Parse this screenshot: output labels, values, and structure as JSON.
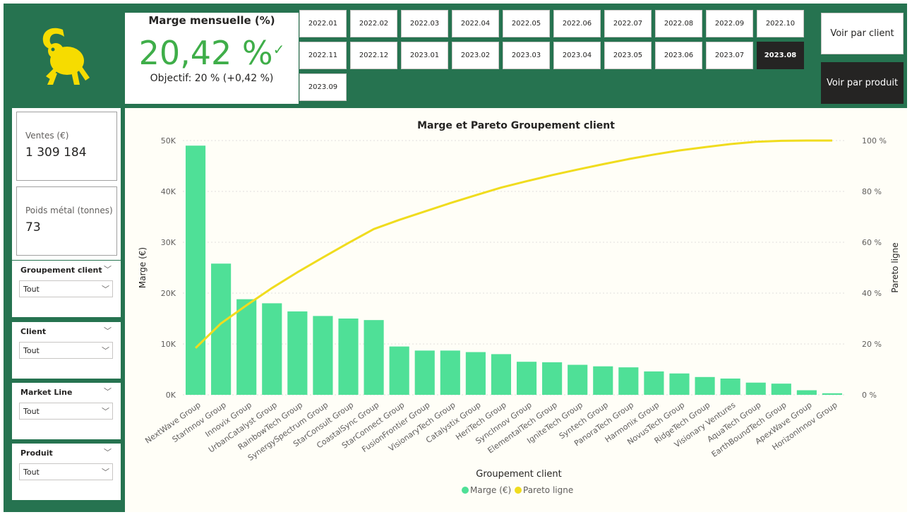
{
  "kpi": {
    "title": "Marge mensuelle (%)",
    "value": "20,42 %",
    "check": "✓",
    "goal": "Objectif: 20 % (+0,42 %)",
    "value_color": "#3fae49"
  },
  "periods": [
    "2022.01",
    "2022.02",
    "2022.03",
    "2022.04",
    "2022.05",
    "2022.06",
    "2022.07",
    "2022.08",
    "2022.09",
    "2022.10",
    "2022.11",
    "2022.12",
    "2023.01",
    "2023.02",
    "2023.03",
    "2023.04",
    "2023.05",
    "2023.06",
    "2023.07",
    "2023.08",
    "2023.09"
  ],
  "selected_period": "2023.08",
  "view_buttons": {
    "client": "Voir par client",
    "product": "Voir par produit"
  },
  "cards": [
    {
      "label": "Ventes (€)",
      "value": "1 309 184"
    },
    {
      "label": "Poids métal (tonnes)",
      "value": "73"
    }
  ],
  "slicers": [
    {
      "title": "Groupement client",
      "value": "Tout"
    },
    {
      "title": "Client",
      "value": "Tout"
    },
    {
      "title": "Market Line",
      "value": "Tout"
    },
    {
      "title": "Produit",
      "value": "Tout"
    }
  ],
  "icons": {
    "logo": "lemur-logo-icon",
    "chevron": "chevron-down-icon"
  },
  "colors": {
    "background": "#267350",
    "bar": "#4fe097",
    "line": "#f0dc1e",
    "logo": "#f6dc00"
  },
  "chart_data": {
    "type": "bar",
    "title": "Marge et Pareto Groupement client",
    "xlabel": "Groupement client",
    "ylabel": "Marge (€)",
    "y2label": "Pareto ligne",
    "ylim": [
      0,
      50000
    ],
    "y2lim": [
      0,
      100
    ],
    "y_ticks": [
      "0K",
      "10K",
      "20K",
      "30K",
      "40K",
      "50K"
    ],
    "y2_ticks": [
      "0 %",
      "20 %",
      "40 %",
      "60 %",
      "80 %",
      "100 %"
    ],
    "grid": true,
    "legend_position": "bottom",
    "categories": [
      "NextWave Group",
      "StarInnov Group",
      "Innovix Group",
      "UrbanCatalyst Group",
      "RainbowTech Group",
      "SynergySpectrum Group",
      "StarConsult Group",
      "CoastalSync Group",
      "StarConnect Group",
      "FusionFrontier Group",
      "VisionaryTech Group",
      "Catalystix Group",
      "HeriTech Group",
      "SyncInnov Group",
      "ElementalTech Group",
      "IgniteTech Group",
      "Syntech Group",
      "PanoraTech Group",
      "Harmonix Group",
      "NovusTech Group",
      "RidgeTech Group",
      "Visionary Ventures",
      "AquaTech Group",
      "EarthBoundTech Group",
      "ApexWave Group",
      "HorizonInnov Group"
    ],
    "series": [
      {
        "name": "Marge (€)",
        "type": "bar",
        "axis": "left",
        "values": [
          49000,
          25800,
          18800,
          18000,
          16400,
          15500,
          15000,
          14700,
          9500,
          8700,
          8700,
          8400,
          8000,
          6500,
          6400,
          5900,
          5600,
          5400,
          4600,
          4200,
          3500,
          3200,
          2400,
          2200,
          900,
          300
        ]
      },
      {
        "name": "Pareto ligne",
        "type": "line",
        "axis": "right",
        "values": [
          18.4,
          28.1,
          35.2,
          42.0,
          48.2,
          54.0,
          59.7,
          65.2,
          68.8,
          72.1,
          75.4,
          78.5,
          81.5,
          84.0,
          86.4,
          88.6,
          90.7,
          92.7,
          94.5,
          96.1,
          97.4,
          98.6,
          99.5,
          99.9,
          100,
          100
        ]
      }
    ]
  }
}
